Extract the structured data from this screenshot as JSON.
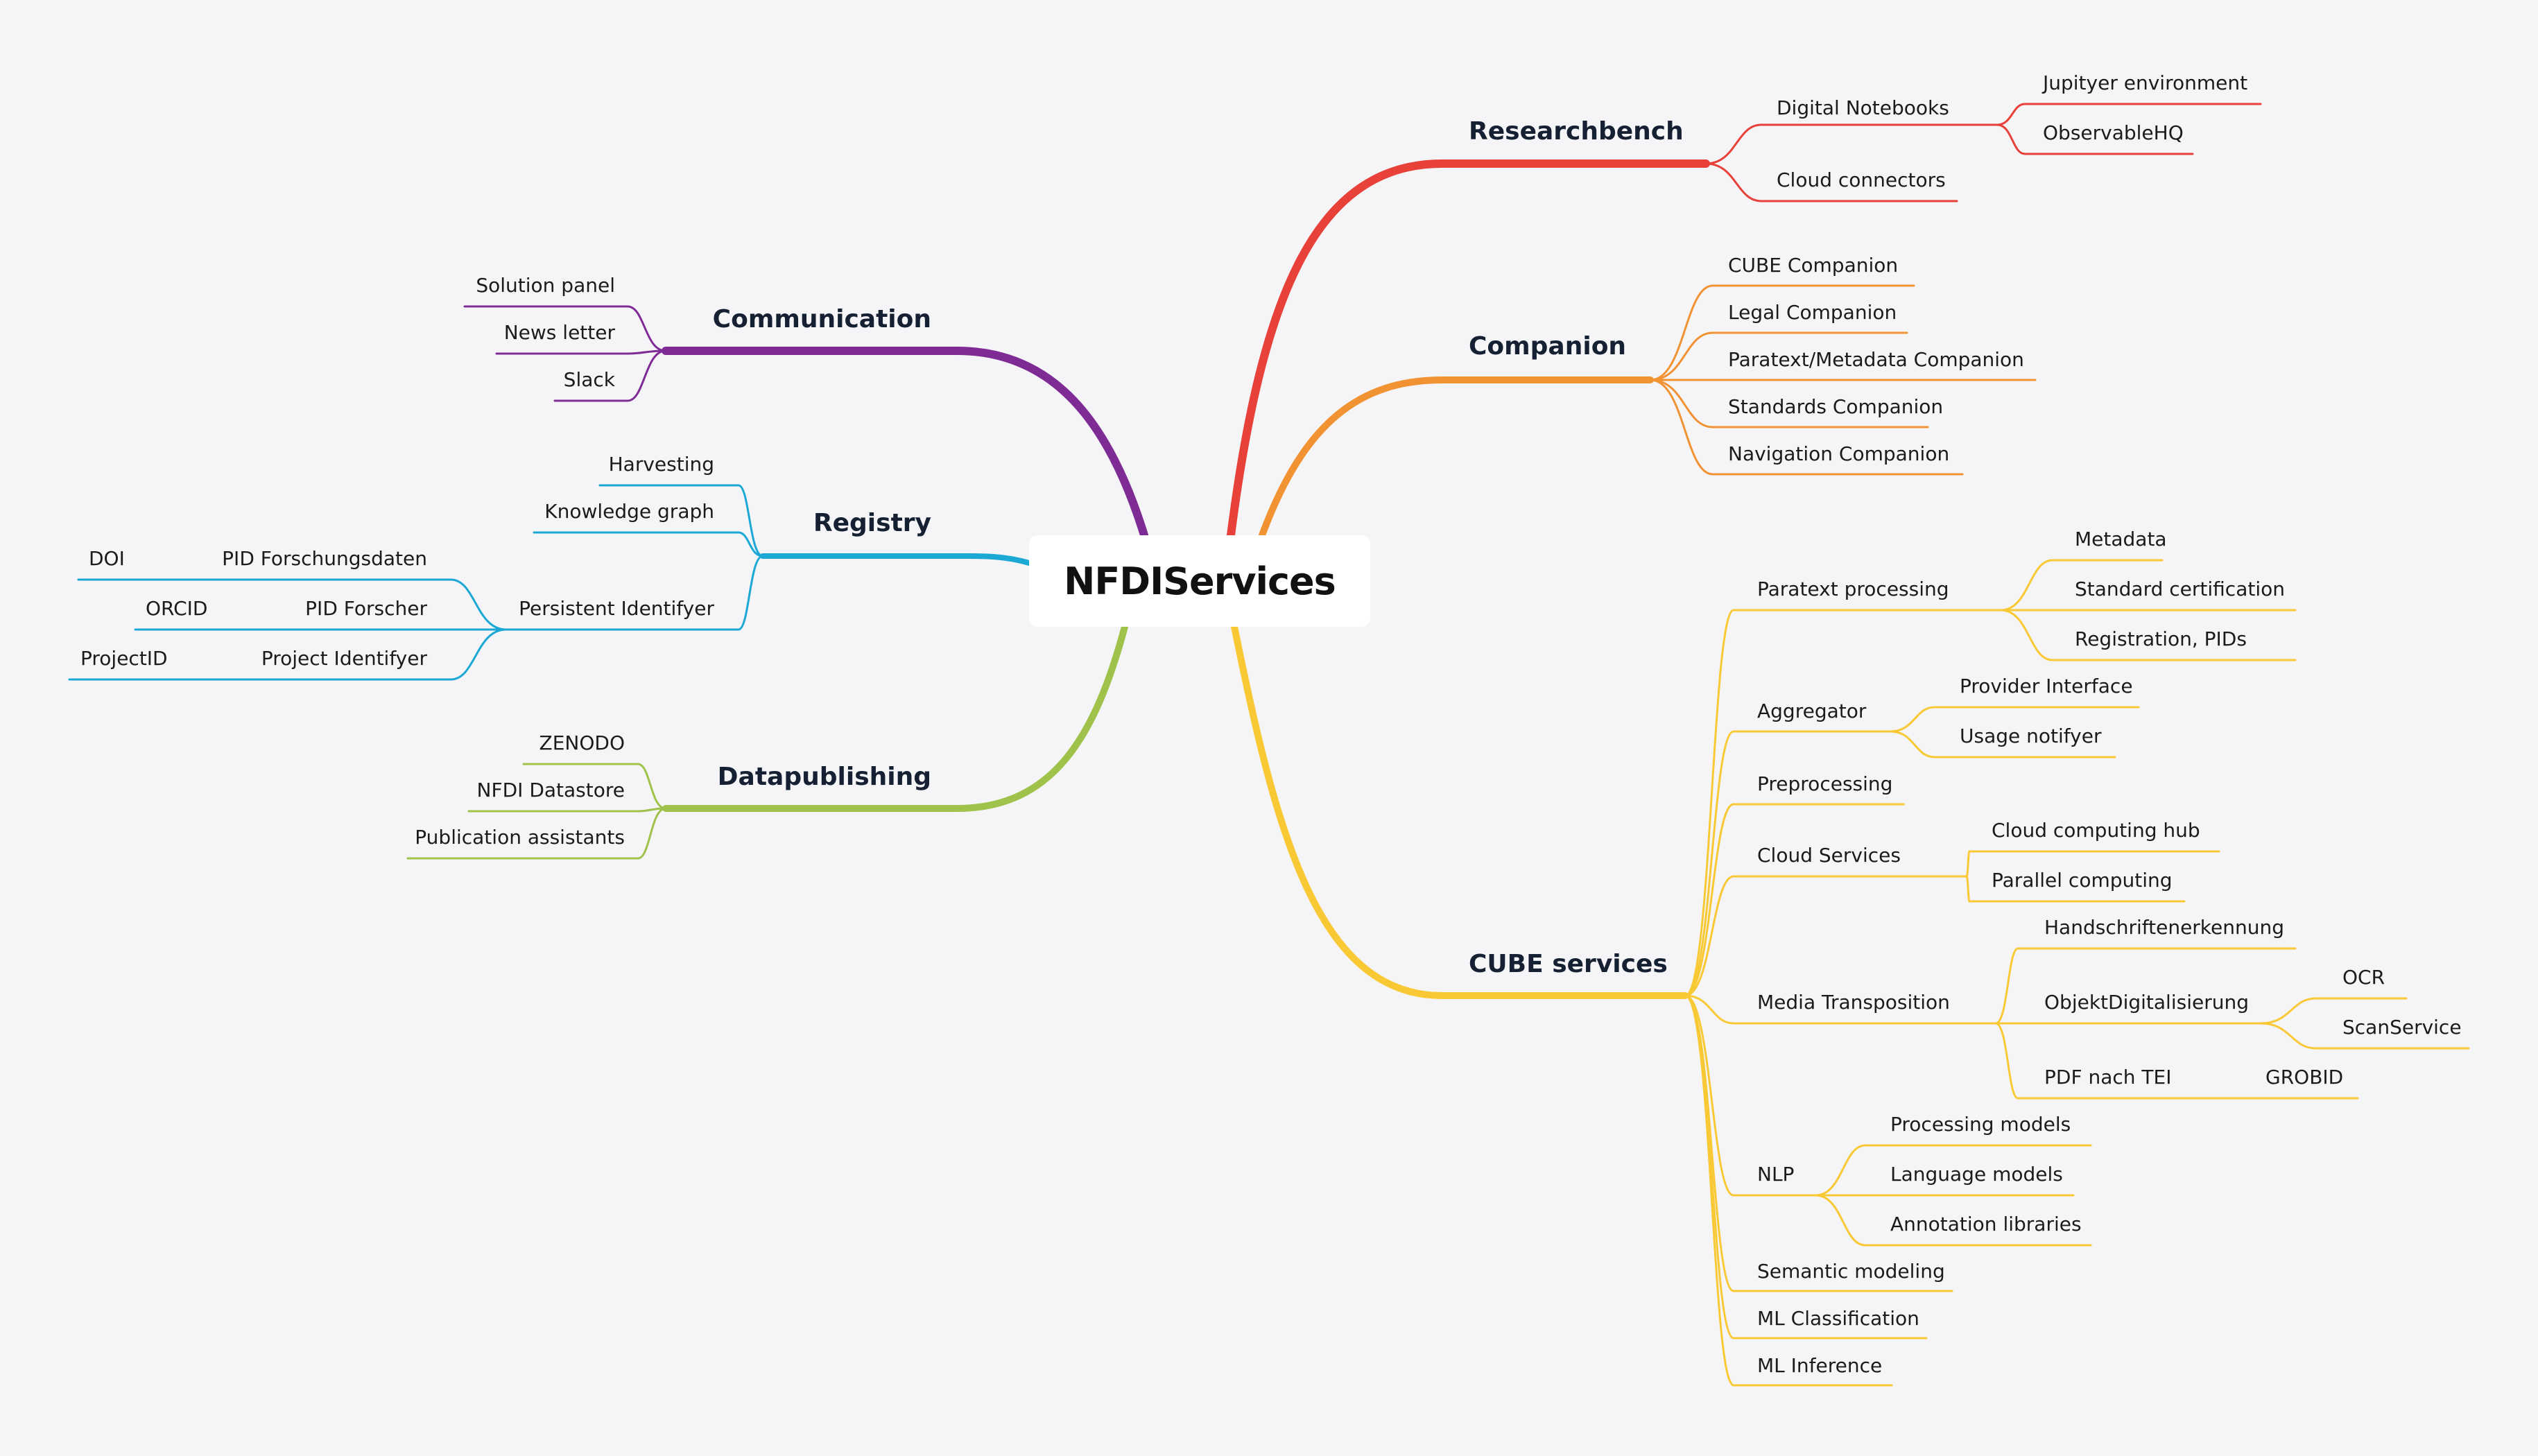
{
  "title": "NFDIServices",
  "colors": {
    "researchbench": "#e8413a",
    "companion": "#f29333",
    "cube": "#f9c935",
    "communication": "#7f2b95",
    "registry": "#1ca8d4",
    "datapublishing": "#9fc34a"
  },
  "branches": {
    "researchbench": {
      "label": "Researchbench",
      "digital_notebooks": "Digital Notebooks",
      "jupityer": "Jupityer environment",
      "observablehq": "ObservableHQ",
      "cloud_connectors": "Cloud connectors"
    },
    "companion": {
      "label": "Companion",
      "items": [
        "CUBE Companion",
        "Legal Companion",
        "Paratext/Metadata Companion",
        "Standards Companion",
        "Navigation Companion"
      ]
    },
    "cube": {
      "label": "CUBE services",
      "paratext": "Paratext processing",
      "paratext_items": [
        "Metadata",
        "Standard certification",
        "Registration, PIDs"
      ],
      "aggregator": "Aggregator",
      "aggregator_items": [
        "Provider Interface",
        "Usage notifyer"
      ],
      "preprocessing": "Preprocessing",
      "cloud_services": "Cloud Services",
      "cloud_items": [
        "Cloud computing hub",
        "Parallel computing"
      ],
      "media": "Media Transposition",
      "handschriften": "Handschriftenerkennung",
      "objekt": "ObjektDigitalisierung",
      "ocr": "OCR",
      "scanservice": "ScanService",
      "pdf_tei": "PDF nach TEI",
      "grobid": "GROBID",
      "nlp": "NLP",
      "nlp_items": [
        "Processing models",
        "Language models",
        "Annotation libraries"
      ],
      "semantic": "Semantic modeling",
      "ml_class": "ML Classification",
      "ml_inf": "ML Inference"
    },
    "communication": {
      "label": "Communication",
      "items": [
        "Solution panel",
        "News letter",
        "Slack"
      ]
    },
    "registry": {
      "label": "Registry",
      "harvesting": "Harvesting",
      "knowledge": "Knowledge graph",
      "pid": "Persistent Identifyer",
      "pid_forschungsdaten": "PID Forschungsdaten",
      "doi": "DOI",
      "pid_forscher": "PID Forscher",
      "orcid": "ORCID",
      "project_identifyer": "Project Identifyer",
      "projectid": "ProjectID"
    },
    "datapublishing": {
      "label": "Datapublishing",
      "items": [
        "ZENODO",
        "NFDI Datastore",
        "Publication assistants"
      ]
    }
  }
}
